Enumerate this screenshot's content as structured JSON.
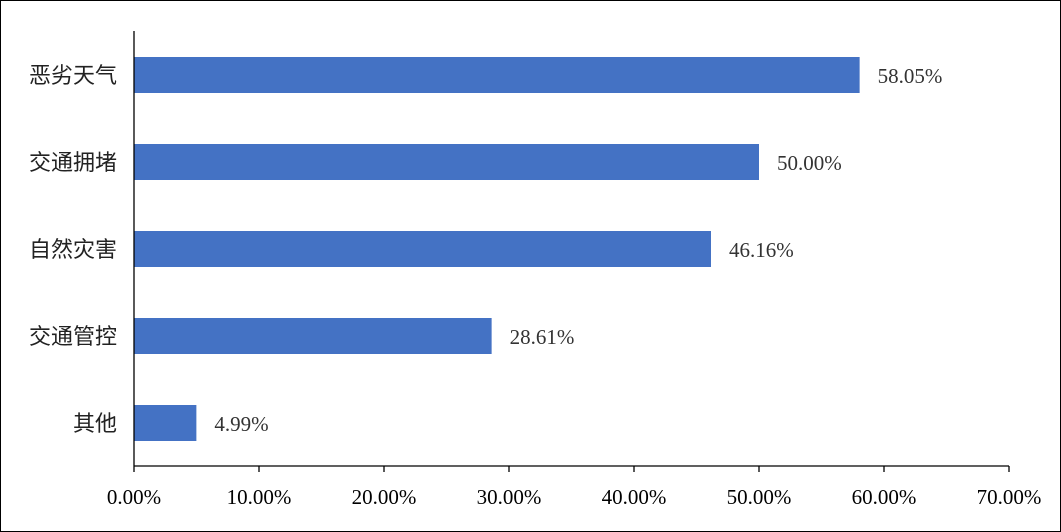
{
  "chart_data": {
    "type": "bar",
    "orientation": "horizontal",
    "categories": [
      "恶劣天气",
      "交通拥堵",
      "自然灾害",
      "交通管控",
      "其他"
    ],
    "values": [
      58.05,
      50.0,
      46.16,
      28.61,
      4.99
    ],
    "value_labels": [
      "58.05%",
      "50.00%",
      "46.16%",
      "28.61%",
      "4.99%"
    ],
    "xlim": [
      0,
      70
    ],
    "x_ticks": [
      0,
      10,
      20,
      30,
      40,
      50,
      60,
      70
    ],
    "x_tick_labels": [
      "0.00%",
      "10.00%",
      "20.00%",
      "30.00%",
      "40.00%",
      "50.00%",
      "60.00%",
      "70.00%"
    ],
    "bar_color": "#4472C4",
    "grid": false,
    "legend": "none"
  }
}
